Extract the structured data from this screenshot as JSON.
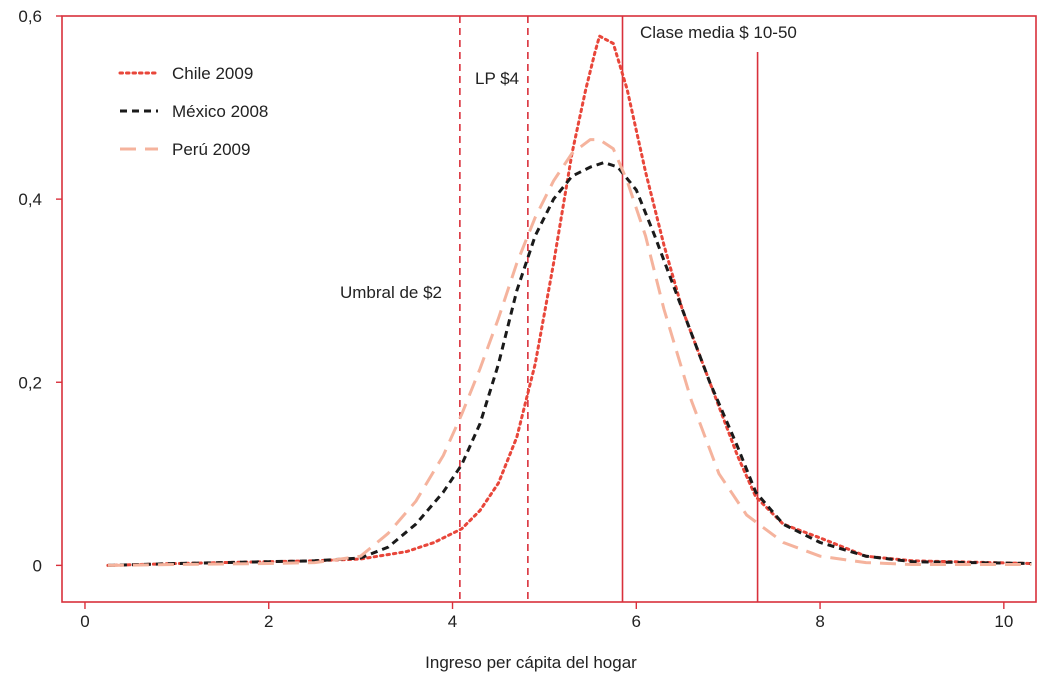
{
  "chart_data": {
    "type": "line",
    "title": "",
    "xlabel": "Ingreso per cápita del hogar",
    "ylabel": "",
    "xlim": [
      -0.25,
      10.35
    ],
    "ylim": [
      -0.04,
      0.6
    ],
    "xticks": [
      0,
      2,
      4,
      6,
      8,
      10
    ],
    "xtick_labels": [
      "0",
      "2",
      "4",
      "6",
      "8",
      "10"
    ],
    "yticks": [
      0,
      0.2,
      0.4,
      0.6
    ],
    "ytick_labels": [
      "0",
      "0,2",
      "0,4",
      "0,6"
    ],
    "grid": false,
    "legend_position": "top-left",
    "series": [
      {
        "name": "Chile 2009",
        "style": "dotted",
        "color": "#e8463a",
        "x": [
          0.25,
          1,
          2,
          2.5,
          3,
          3.5,
          3.8,
          4.1,
          4.3,
          4.5,
          4.7,
          4.9,
          5.1,
          5.3,
          5.45,
          5.55,
          5.6,
          5.75,
          5.9,
          6.1,
          6.3,
          6.5,
          6.8,
          7.1,
          7.3,
          7.6,
          8.0,
          8.5,
          9,
          10.3
        ],
        "y": [
          0,
          0.002,
          0.004,
          0.005,
          0.007,
          0.015,
          0.025,
          0.04,
          0.06,
          0.09,
          0.14,
          0.22,
          0.33,
          0.45,
          0.52,
          0.56,
          0.578,
          0.57,
          0.52,
          0.43,
          0.35,
          0.28,
          0.2,
          0.12,
          0.075,
          0.045,
          0.03,
          0.01,
          0.005,
          0.002
        ]
      },
      {
        "name": "México 2008",
        "style": "dashed",
        "color": "#1a1a1a",
        "x": [
          0.25,
          1,
          2,
          2.5,
          3,
          3.3,
          3.6,
          3.9,
          4.1,
          4.3,
          4.5,
          4.7,
          4.9,
          5.1,
          5.3,
          5.5,
          5.65,
          5.8,
          6.0,
          6.2,
          6.5,
          6.8,
          7.1,
          7.3,
          7.6,
          8.0,
          8.5,
          9,
          10.3
        ],
        "y": [
          0,
          0.002,
          0.004,
          0.005,
          0.008,
          0.02,
          0.045,
          0.08,
          0.11,
          0.155,
          0.22,
          0.3,
          0.36,
          0.4,
          0.425,
          0.435,
          0.44,
          0.435,
          0.41,
          0.36,
          0.28,
          0.2,
          0.13,
          0.08,
          0.045,
          0.025,
          0.01,
          0.004,
          0.002
        ]
      },
      {
        "name": "Perú 2009",
        "style": "long-dashed",
        "color": "#f5b39d",
        "x": [
          0.25,
          1,
          2,
          2.5,
          3,
          3.3,
          3.6,
          3.9,
          4.1,
          4.3,
          4.5,
          4.7,
          4.9,
          5.1,
          5.3,
          5.5,
          5.6,
          5.75,
          5.9,
          6.1,
          6.3,
          6.6,
          6.9,
          7.2,
          7.6,
          8.0,
          8.5,
          9,
          10.3
        ],
        "y": [
          0,
          0.001,
          0.002,
          0.003,
          0.01,
          0.035,
          0.07,
          0.12,
          0.165,
          0.215,
          0.27,
          0.33,
          0.38,
          0.42,
          0.45,
          0.465,
          0.465,
          0.455,
          0.42,
          0.36,
          0.28,
          0.18,
          0.1,
          0.055,
          0.025,
          0.01,
          0.003,
          0.001,
          0.001
        ]
      }
    ],
    "vertical_lines": [
      {
        "x": 4.08,
        "style": "dashed",
        "color": "#d9303b",
        "label": "Umbral de $2"
      },
      {
        "x": 4.82,
        "style": "dashed",
        "color": "#d9303b",
        "label": "LP $4"
      },
      {
        "x": 5.85,
        "style": "solid",
        "color": "#d9303b",
        "label": "Clase media $ 10-50"
      },
      {
        "x": 7.32,
        "style": "solid",
        "color": "#d9303b",
        "label": ""
      }
    ],
    "colors": {
      "frame": "#d9303b",
      "axis": "#d9303b"
    }
  }
}
